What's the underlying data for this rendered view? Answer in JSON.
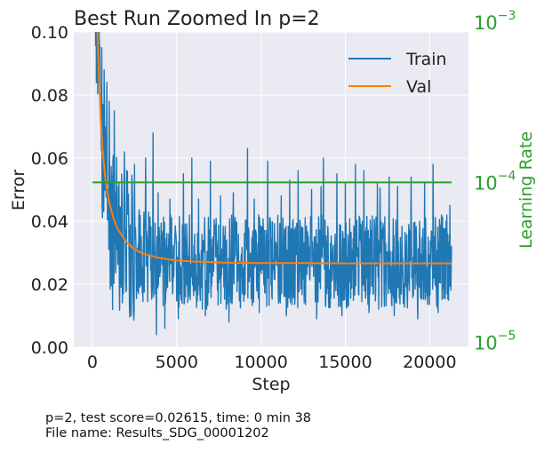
{
  "chart_data": {
    "type": "line",
    "title": "Best Run Zoomed In p=2",
    "xlabel": "Step",
    "ylabel": "Error",
    "y2label": "Learning Rate",
    "xlim": [
      -1100,
      22300
    ],
    "ylim": [
      0,
      0.1
    ],
    "y2lim_log10": [
      -5.03,
      -3.06
    ],
    "y2scale": "log",
    "grid": true,
    "legend_position": "top-right",
    "x_ticks": [
      0,
      5000,
      10000,
      15000,
      20000
    ],
    "x_tick_labels": [
      "0",
      "5000",
      "10000",
      "15000",
      "20000"
    ],
    "y_ticks": [
      0,
      0.02,
      0.04,
      0.06,
      0.08,
      0.1
    ],
    "y_tick_labels": [
      "0.00",
      "0.02",
      "0.04",
      "0.06",
      "0.08",
      "0.10"
    ],
    "y2_ticks": [
      {
        "base": "10",
        "exp": "−5",
        "log10": -5
      },
      {
        "base": "10",
        "exp": "−4",
        "log10": -4
      },
      {
        "base": "10",
        "exp": "−3",
        "log10": -3
      }
    ],
    "colors": {
      "train": "#1f77b4",
      "val": "#ff7f0e",
      "lr": "#2ca02c",
      "background": "#eaeaf2",
      "grid": "#ffffff"
    },
    "series": [
      {
        "name": "Train",
        "style": "noisy",
        "x": [
          0,
          200,
          400,
          600,
          800,
          1000,
          1500,
          2000,
          2500,
          3000,
          4000,
          5000,
          6000,
          8000,
          10000,
          12000,
          15000,
          18000,
          21300
        ],
        "values": [
          0.2,
          0.11,
          0.075,
          0.055,
          0.045,
          0.04,
          0.034,
          0.031,
          0.029,
          0.028,
          0.027,
          0.026,
          0.026,
          0.026,
          0.026,
          0.026,
          0.026,
          0.026,
          0.026
        ],
        "noise_range": [
          -0.014,
          0.016
        ],
        "spikes": [
          {
            "x": 400,
            "y": 0.1
          },
          {
            "x": 550,
            "y": 0.095
          },
          {
            "x": 700,
            "y": 0.088
          },
          {
            "x": 850,
            "y": 0.084
          },
          {
            "x": 1000,
            "y": 0.078
          },
          {
            "x": 1300,
            "y": 0.075
          },
          {
            "x": 1900,
            "y": 0.062
          },
          {
            "x": 2500,
            "y": 0.058
          },
          {
            "x": 3150,
            "y": 0.06
          },
          {
            "x": 3600,
            "y": 0.068
          },
          {
            "x": 3900,
            "y": 0.049
          },
          {
            "x": 4600,
            "y": 0.047
          },
          {
            "x": 5400,
            "y": 0.055
          },
          {
            "x": 5900,
            "y": 0.06
          },
          {
            "x": 6300,
            "y": 0.047
          },
          {
            "x": 7000,
            "y": 0.059
          },
          {
            "x": 7600,
            "y": 0.048
          },
          {
            "x": 8350,
            "y": 0.049
          },
          {
            "x": 9200,
            "y": 0.063
          },
          {
            "x": 9600,
            "y": 0.047
          },
          {
            "x": 10400,
            "y": 0.059
          },
          {
            "x": 11200,
            "y": 0.048
          },
          {
            "x": 11700,
            "y": 0.053
          },
          {
            "x": 12200,
            "y": 0.056
          },
          {
            "x": 13000,
            "y": 0.05
          },
          {
            "x": 13700,
            "y": 0.06
          },
          {
            "x": 14500,
            "y": 0.055
          },
          {
            "x": 15000,
            "y": 0.052
          },
          {
            "x": 15600,
            "y": 0.058
          },
          {
            "x": 16100,
            "y": 0.056
          },
          {
            "x": 16900,
            "y": 0.052
          },
          {
            "x": 17600,
            "y": 0.054
          },
          {
            "x": 18100,
            "y": 0.051
          },
          {
            "x": 18900,
            "y": 0.054
          },
          {
            "x": 19700,
            "y": 0.052
          },
          {
            "x": 20200,
            "y": 0.058
          },
          {
            "x": 20700,
            "y": 0.042
          },
          {
            "x": 21200,
            "y": 0.045
          },
          {
            "x": 1200,
            "y": 0.012
          },
          {
            "x": 2300,
            "y": 0.01
          },
          {
            "x": 3800,
            "y": 0.004
          },
          {
            "x": 4300,
            "y": 0.006
          },
          {
            "x": 5100,
            "y": 0.009
          },
          {
            "x": 6700,
            "y": 0.01
          },
          {
            "x": 8100,
            "y": 0.008
          },
          {
            "x": 9900,
            "y": 0.011
          },
          {
            "x": 11500,
            "y": 0.01
          },
          {
            "x": 13300,
            "y": 0.009
          },
          {
            "x": 14800,
            "y": 0.01
          },
          {
            "x": 16400,
            "y": 0.011
          },
          {
            "x": 17900,
            "y": 0.01
          },
          {
            "x": 19300,
            "y": 0.009
          },
          {
            "x": 20500,
            "y": 0.011
          }
        ]
      },
      {
        "name": "Val",
        "x": [
          0,
          100,
          200,
          300,
          400,
          500,
          600,
          800,
          1000,
          1250,
          1500,
          2000,
          2500,
          3000,
          3500,
          4000,
          5000,
          6000,
          7000,
          8000,
          10000,
          12000,
          15000,
          18000,
          21300
        ],
        "values": [
          0.2,
          0.15,
          0.12,
          0.1,
          0.085,
          0.072,
          0.063,
          0.052,
          0.046,
          0.041,
          0.0375,
          0.0335,
          0.031,
          0.0297,
          0.029,
          0.0283,
          0.0275,
          0.0272,
          0.027,
          0.0268,
          0.0267,
          0.0267,
          0.0266,
          0.0266,
          0.0266
        ]
      },
      {
        "name": "LR",
        "axis": "right",
        "x": [
          0,
          21300
        ],
        "values": [
          0.0001,
          0.0001
        ]
      }
    ]
  },
  "caption": {
    "line1": "p=2, test score=0.02615, time: 0 min 38",
    "line2": "File name: Results_SDG_00001202"
  }
}
